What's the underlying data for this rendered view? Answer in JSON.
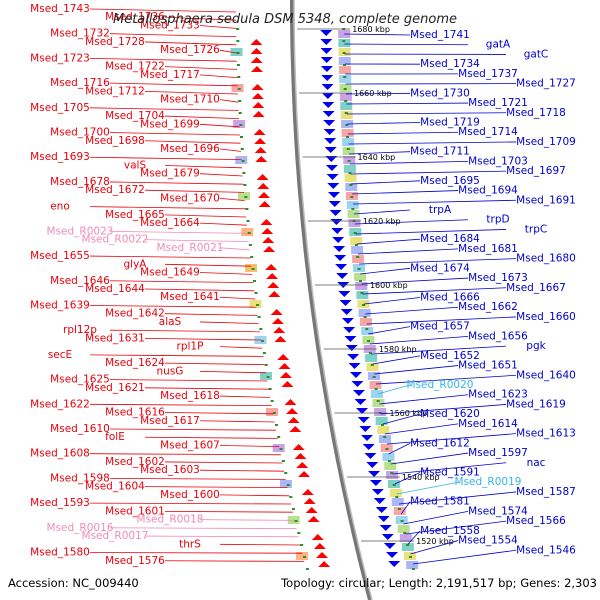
{
  "title": "Metallosphaera sedula DSM 5348, complete genome",
  "footer": {
    "accession": "Accession: NC_009440",
    "stats": "Topology: circular; Length: 2,191,517 bp; Genes: 2,303"
  },
  "colors": {
    "left_labels": "#e8000b",
    "left_rna": "#f08bb6",
    "right_labels": "#0000cc",
    "right_rna": "#33b5e5",
    "left_arrows": "#ff0000",
    "right_arrows": "#0000ee",
    "backbone": "#777777",
    "tick": "#2e8b2e"
  },
  "scale_labels": [
    "1680 kbp",
    "1660 kbp",
    "1640 kbp",
    "1620 kbp",
    "1600 kbp",
    "1580 kbp",
    "1560 kbp",
    "1540 kbp",
    "1520 kbp"
  ],
  "left_labels": [
    "Msed_1743",
    "Msed_1736",
    "Msed_1733",
    "Msed_1732",
    "Msed_1728",
    "Msed_1726",
    "Msed_1723",
    "Msed_1722",
    "Msed_1717",
    "Msed_1716",
    "Msed_1712",
    "Msed_1710",
    "Msed_1705",
    "Msed_1704",
    "Msed_1699",
    "Msed_1700",
    "Msed_1698",
    "Msed_1696",
    "Msed_1693",
    "valS",
    "Msed_1679",
    "Msed_1678",
    "Msed_1672",
    "Msed_1670",
    "eno",
    "Msed_1665",
    "Msed_1664",
    "Msed_R0023",
    "Msed_R0022",
    "Msed_R0021",
    "Msed_1655",
    "glyA",
    "Msed_1649",
    "Msed_1646",
    "Msed_1644",
    "Msed_1641",
    "Msed_1639",
    "Msed_1642",
    "alaS",
    "rpl12p",
    "Msed_1631",
    "rpl1P",
    "secE",
    "Msed_1624",
    "nusG",
    "Msed_1625",
    "Msed_1621",
    "Msed_1618",
    "Msed_1622",
    "Msed_1616",
    "Msed_1617",
    "Msed_1610",
    "folE",
    "Msed_1607",
    "Msed_1608",
    "Msed_1602",
    "Msed_1603",
    "Msed_1598",
    "Msed_1604",
    "Msed_1600",
    "Msed_1593",
    "Msed_1601",
    "Msed_R0018",
    "Msed_R0016",
    "Msed_R0017",
    "thrS",
    "Msed_1580",
    "Msed_1576"
  ],
  "left_rna_labels": [
    "Msed_R0023",
    "Msed_R0022",
    "Msed_R0021",
    "Msed_R0018",
    "Msed_R0016",
    "Msed_R0017"
  ],
  "right_labels": [
    "Msed_1741",
    "gatA",
    "gatC",
    "Msed_1734",
    "Msed_1737",
    "Msed_1727",
    "Msed_1730",
    "Msed_1721",
    "Msed_1718",
    "Msed_1719",
    "Msed_1714",
    "Msed_1709",
    "Msed_1711",
    "Msed_1703",
    "Msed_1697",
    "Msed_1695",
    "Msed_1694",
    "Msed_1691",
    "trpA",
    "trpD",
    "trpC",
    "Msed_1684",
    "Msed_1681",
    "Msed_1680",
    "Msed_1674",
    "Msed_1673",
    "Msed_1667",
    "Msed_1666",
    "Msed_1662",
    "Msed_1660",
    "Msed_1657",
    "Msed_1656",
    "pgk",
    "Msed_1652",
    "Msed_1651",
    "Msed_1640",
    "Msed_R0020",
    "Msed_1623",
    "Msed_1619",
    "Msed_1620",
    "Msed_1614",
    "Msed_1613",
    "Msed_1612",
    "Msed_1597",
    "nac",
    "Msed_1591",
    "Msed_R0019",
    "Msed_1587",
    "Msed_1581",
    "Msed_1574",
    "Msed_1566",
    "Msed_1558",
    "Msed_1554",
    "Msed_1546"
  ],
  "right_rna_labels": [
    "Msed_R0020",
    "Msed_R0019"
  ]
}
